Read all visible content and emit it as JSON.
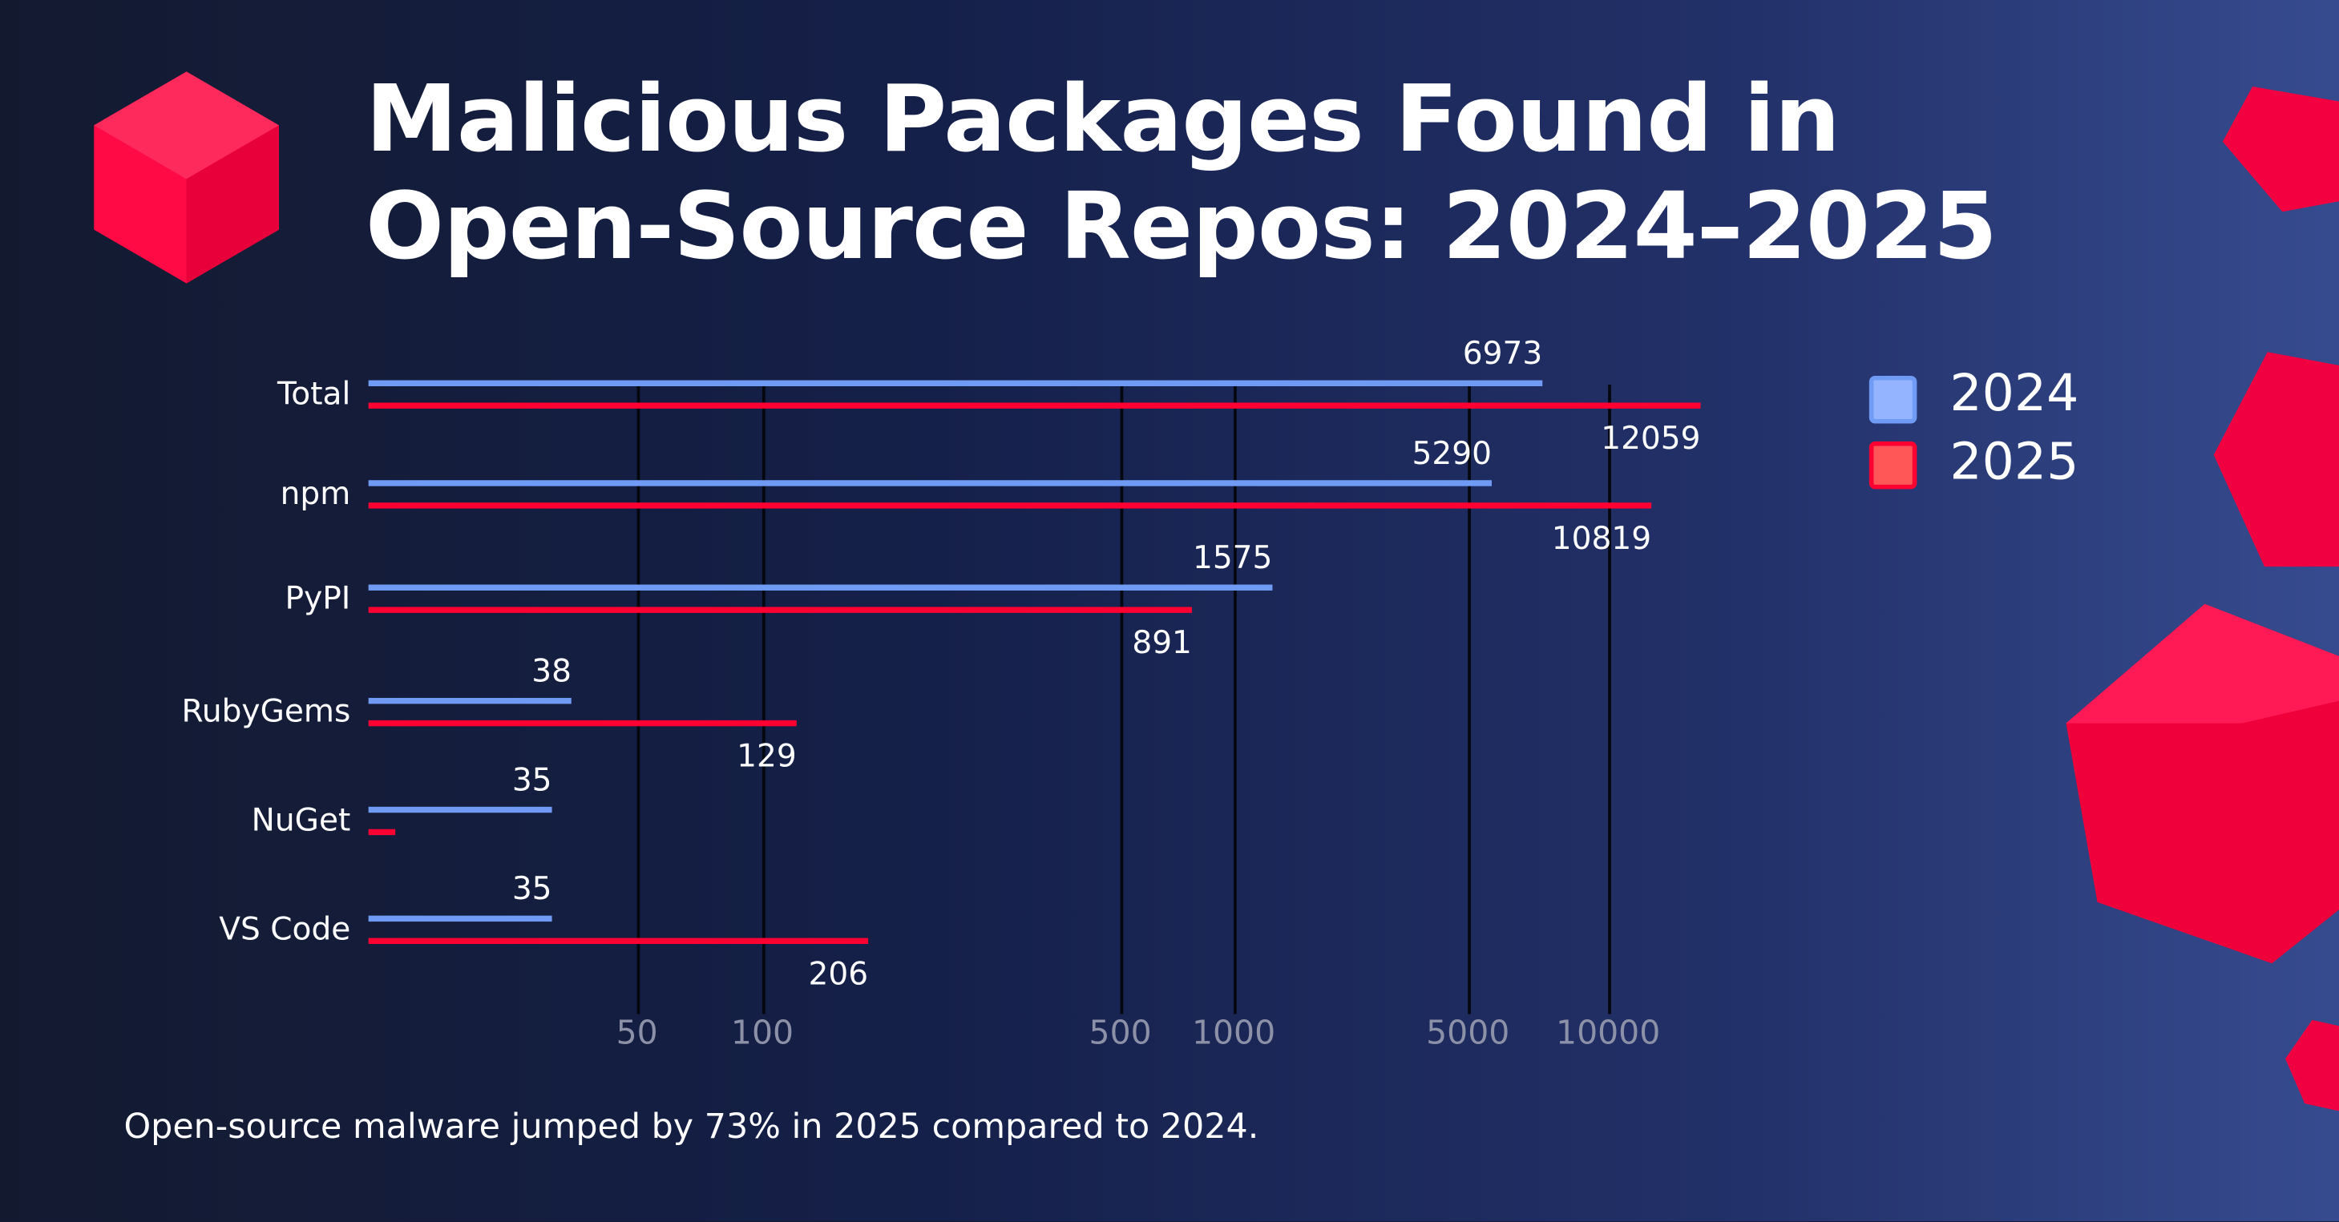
{
  "title_line1": "Malicious Packages Found in",
  "title_line2": "Open-Source Repos: 2024–2025",
  "footer": "Open-source malware jumped by 73% in 2025 compared to 2024.",
  "colors": {
    "2024": "#6f9bf5",
    "2025": "#ff0033",
    "legend_2024_fill": "#94b4ff",
    "legend_2025_fill": "#ff5757",
    "cube": "#ff0040"
  },
  "chart_data": {
    "type": "bar",
    "orientation": "horizontal",
    "title": "Malicious Packages Found in Open-Source Repos: 2024–2025",
    "xscale": "log",
    "categories": [
      "Total",
      "npm",
      "PyPI",
      "RubyGems",
      "NuGet",
      "VS Code"
    ],
    "series": [
      {
        "name": "2024",
        "values": [
          6973,
          5290,
          1575,
          38,
          35,
          35
        ],
        "labels": [
          "6973",
          "5290",
          "1575",
          "38",
          "35",
          "35"
        ]
      },
      {
        "name": "2025",
        "values": [
          12059,
          10819,
          891,
          129,
          12,
          206
        ],
        "labels": [
          "12059",
          "10819",
          "891",
          "129",
          null,
          "206"
        ]
      }
    ],
    "xticks": [
      50,
      100,
      500,
      1000,
      5000,
      10000
    ],
    "xtick_labels": [
      "50",
      "100",
      "500",
      "1000",
      "5000",
      "10000"
    ],
    "grid": true,
    "legend": "top-right",
    "legend_entries": [
      "2024",
      "2025"
    ]
  }
}
